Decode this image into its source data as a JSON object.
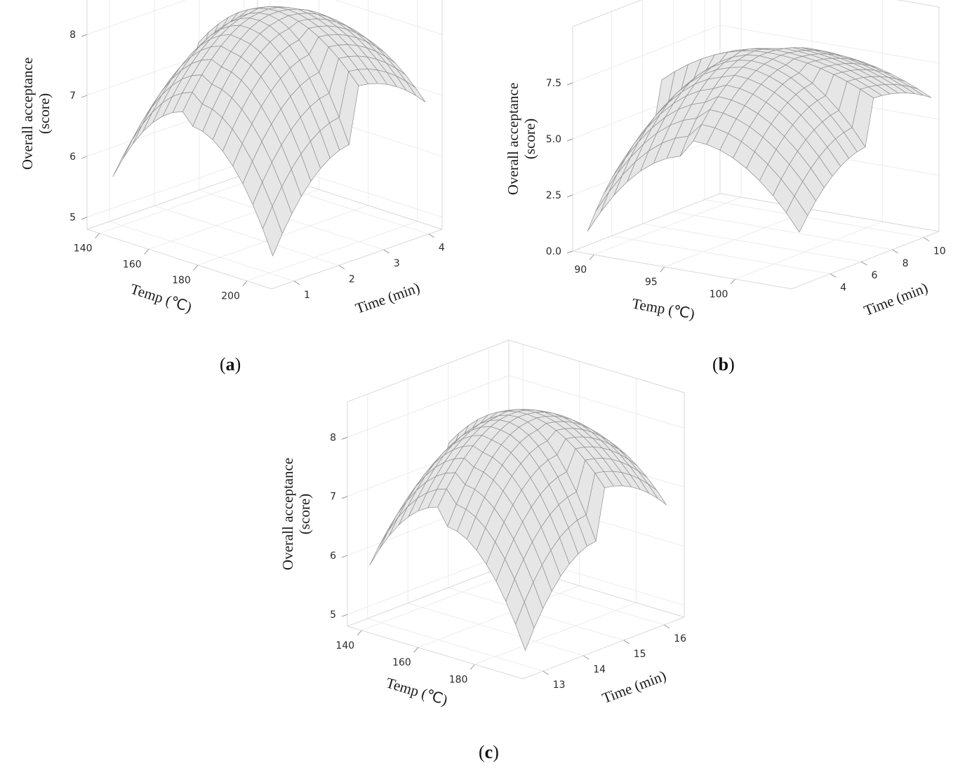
{
  "chart_data": [
    {
      "type": "surface3d",
      "panel_label": "a",
      "zlabel": [
        "Overall acceptance",
        "(score)"
      ],
      "xlabel": "Temp (℃)",
      "ylabel": "Time (min)",
      "x_ticks": [
        "140",
        "160",
        "180",
        "200"
      ],
      "x_tick_values": [
        140,
        160,
        180,
        200
      ],
      "xlim": [
        135,
        210
      ],
      "y_ticks": [
        "1",
        "2",
        "3",
        "4"
      ],
      "y_tick_values": [
        1,
        2,
        3,
        4
      ],
      "ylim": [
        0.5,
        4.3
      ],
      "z_ticks": [
        "5",
        "6",
        "7",
        "8"
      ],
      "z_tick_values": [
        5,
        6,
        7,
        8
      ],
      "zlim": [
        4.8,
        8.6
      ],
      "surface": {
        "x_range": [
          140,
          205
        ],
        "y_range": [
          0.8,
          4.2
        ],
        "x_peak": 172,
        "y_peak": 2.6,
        "z_peak": 8.3,
        "corner_values": {
          "x_min_y_min": 5.65,
          "x_max_y_min": 5.2,
          "x_min_y_max": 6.6,
          "x_max_y_max": 6.85
        }
      }
    },
    {
      "type": "surface3d",
      "panel_label": "b",
      "zlabel": [
        "Overall acceptance",
        "(score)"
      ],
      "xlabel": "Temp (℃)",
      "ylabel": "Time (min)",
      "x_ticks": [
        "90",
        "95",
        "100"
      ],
      "x_tick_values": [
        90,
        95,
        100
      ],
      "xlim": [
        88.5,
        104
      ],
      "y_ticks": [
        "4",
        "6",
        "8",
        "10"
      ],
      "y_tick_values": [
        4,
        6,
        8,
        10
      ],
      "ylim": [
        1.5,
        11
      ],
      "z_ticks": [
        "0.0",
        "2.5",
        "5.0",
        "7.5"
      ],
      "z_tick_values": [
        0,
        2.5,
        5,
        7.5
      ],
      "zlim": [
        0,
        10
      ],
      "surface": {
        "x_range": [
          89,
          104
        ],
        "y_range": [
          2,
          10.5
        ],
        "x_peak": 96.5,
        "y_peak": 6.5,
        "z_peak": 8.3,
        "corner_values": {
          "x_min_y_min": 0.8,
          "x_max_y_min": 2.4,
          "x_min_y_max": 4.6,
          "x_max_y_max": 6.1
        }
      }
    },
    {
      "type": "surface3d",
      "panel_label": "c",
      "zlabel": [
        "Overall acceptance",
        "(score)"
      ],
      "xlabel": "Temp (℃)",
      "ylabel": "Time (min)",
      "x_ticks": [
        "140",
        "160",
        "180"
      ],
      "x_tick_values": [
        140,
        160,
        180
      ],
      "xlim": [
        135,
        197
      ],
      "y_ticks": [
        "13",
        "14",
        "15",
        "16"
      ],
      "y_tick_values": [
        13,
        14,
        15,
        16
      ],
      "ylim": [
        12.5,
        16.5
      ],
      "z_ticks": [
        "5",
        "6",
        "7",
        "8"
      ],
      "z_tick_values": [
        5,
        6,
        7,
        8
      ],
      "zlim": [
        4.8,
        8.6
      ],
      "surface": {
        "x_range": [
          140,
          195
        ],
        "y_range": [
          12.7,
          16.2
        ],
        "x_peak": 167,
        "y_peak": 14.5,
        "z_peak": 8.3,
        "corner_values": {
          "x_min_y_min": 5.85,
          "x_max_y_min": 5.2,
          "x_min_y_max": 6.7,
          "x_max_y_max": 6.75
        }
      }
    }
  ]
}
